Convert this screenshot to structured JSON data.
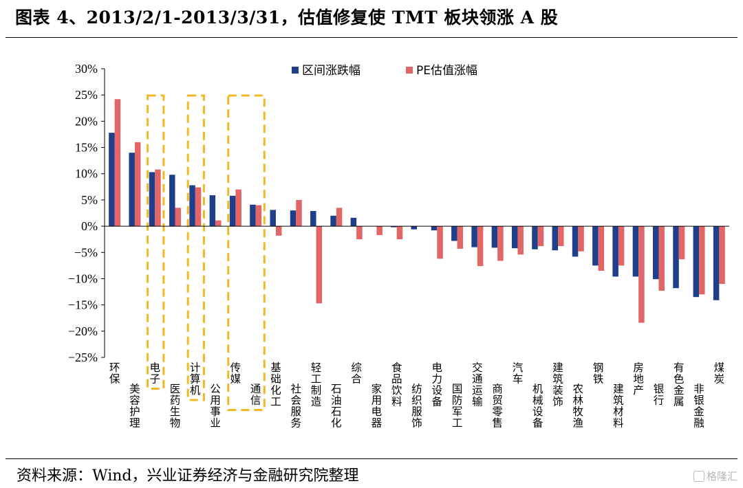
{
  "title": "图表 4、2013/2/1-2013/3/31，估值修复使 TMT 板块领涨 A 股",
  "source": "资料来源：Wind，兴业证券经济与金融研究院整理",
  "watermark": "格隆汇",
  "chart_data": {
    "type": "bar",
    "title": "",
    "xlabel": "",
    "ylabel": "",
    "ylim": [
      -25,
      30
    ],
    "yticks": [
      30,
      25,
      20,
      15,
      10,
      5,
      0,
      -5,
      -10,
      -15,
      -20,
      -25
    ],
    "ytick_labels": [
      "30%",
      "25%",
      "20%",
      "15%",
      "10%",
      "5%",
      "0%",
      "−5%",
      "−10%",
      "−15%",
      "−20%",
      "−25%"
    ],
    "grid": false,
    "legend_position": "top-center",
    "categories": [
      "环保",
      "美容护理",
      "电子",
      "医药生物",
      "计算机",
      "公用事业",
      "传媒",
      "通信",
      "基础化工",
      "社会服务",
      "轻工制造",
      "石油石化",
      "综合",
      "家用电器",
      "食品饮料",
      "纺织服饰",
      "电力设备",
      "国防军工",
      "交通运输",
      "商贸零售",
      "汽车",
      "机械设备",
      "建筑装饰",
      "农林牧渔",
      "钢铁",
      "建筑材料",
      "房地产",
      "银行",
      "有色金属",
      "非银金融",
      "煤炭"
    ],
    "series": [
      {
        "name": "区间涨跌幅",
        "color": "#1f3f8a",
        "values": [
          17.8,
          14.0,
          10.3,
          9.8,
          7.8,
          5.9,
          5.8,
          4.1,
          3.1,
          3.0,
          2.9,
          2.0,
          1.6,
          0.0,
          -0.2,
          -0.6,
          -0.8,
          -2.8,
          -4.0,
          -4.1,
          -4.2,
          -4.4,
          -4.6,
          -5.8,
          -7.5,
          -9.6,
          -9.6,
          -10.1,
          -11.8,
          -13.5,
          -14.1
        ]
      },
      {
        "name": "PE估值涨幅",
        "color": "#e26666",
        "values": [
          24.2,
          16.0,
          10.8,
          3.5,
          7.4,
          1.1,
          7.0,
          4.0,
          -1.8,
          5.0,
          -14.7,
          3.5,
          -2.5,
          -1.7,
          -2.5,
          0.0,
          -6.2,
          -4.3,
          -7.6,
          -6.6,
          -5.4,
          -3.8,
          -3.8,
          -4.8,
          -8.5,
          -7.5,
          -18.4,
          -12.3,
          -6.3,
          -13.0,
          -11.0
        ]
      }
    ],
    "highlight_groups": [
      {
        "categories": [
          "电子"
        ],
        "style": "dashed-box",
        "color": "#f2b824"
      },
      {
        "categories": [
          "计算机"
        ],
        "style": "dashed-box",
        "color": "#f2b824"
      },
      {
        "categories": [
          "传媒",
          "通信"
        ],
        "style": "dashed-box",
        "color": "#f2b824"
      }
    ]
  }
}
